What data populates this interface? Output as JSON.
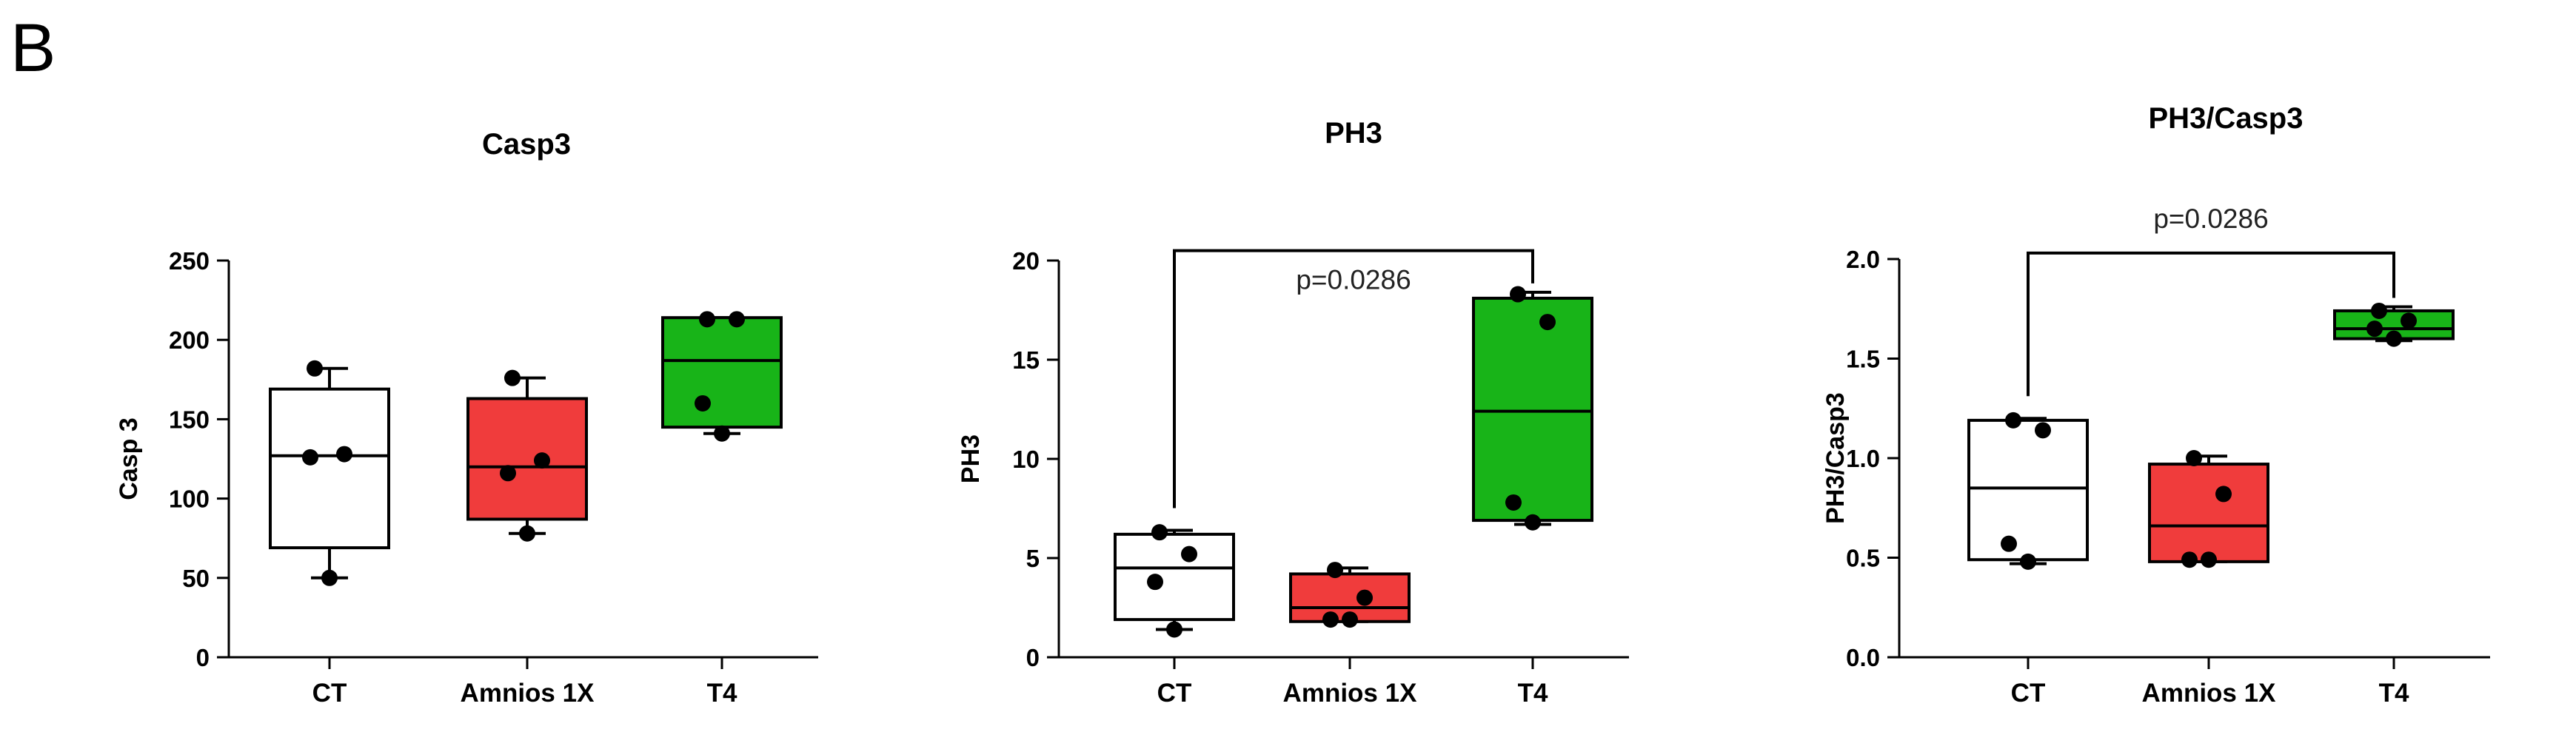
{
  "figure": {
    "panel_letter": "B"
  },
  "colors": {
    "axis": "#000000",
    "box_outline": "#000000",
    "point": "#000000"
  },
  "chart_data": [
    {
      "type": "box",
      "title": "Casp3",
      "ylabel": "Casp 3",
      "xlabel": "",
      "ylim": [
        0,
        250
      ],
      "yticks": [
        0,
        50,
        100,
        150,
        200,
        250
      ],
      "ytick_labels": [
        "0",
        "50",
        "100",
        "150",
        "200",
        "250"
      ],
      "categories": [
        "CT",
        "Amnios 1X",
        "T4"
      ],
      "fills": [
        "#ffffff",
        "#f03c3c",
        "#18b418"
      ],
      "boxes": [
        {
          "min": 50,
          "q1": 69,
          "median": 127,
          "q3": 169,
          "max": 182,
          "points": [
            182,
            128,
            126,
            50
          ]
        },
        {
          "min": 78,
          "q1": 87,
          "median": 120,
          "q3": 163,
          "max": 176,
          "points": [
            176,
            124,
            116,
            78
          ]
        },
        {
          "min": 141,
          "q1": 145,
          "median": 187,
          "q3": 214,
          "max": 214,
          "points": [
            213,
            213,
            160,
            141
          ]
        }
      ],
      "annotations": []
    },
    {
      "type": "box",
      "title": "PH3",
      "ylabel": "PH3",
      "xlabel": "",
      "ylim": [
        0,
        20
      ],
      "yticks": [
        0,
        5,
        10,
        15,
        20
      ],
      "ytick_labels": [
        "0",
        "5",
        "10",
        "15",
        "20"
      ],
      "categories": [
        "CT",
        "Amnios 1X",
        "T4"
      ],
      "fills": [
        "#ffffff",
        "#f03c3c",
        "#18b418"
      ],
      "boxes": [
        {
          "min": 1.4,
          "q1": 1.9,
          "median": 4.5,
          "q3": 6.2,
          "max": 6.4,
          "points": [
            6.3,
            5.2,
            3.8,
            1.4
          ]
        },
        {
          "min": 1.8,
          "q1": 1.8,
          "median": 2.5,
          "q3": 4.2,
          "max": 4.5,
          "points": [
            4.4,
            3.0,
            1.9,
            1.9
          ]
        },
        {
          "min": 6.7,
          "q1": 6.9,
          "median": 12.4,
          "q3": 18.1,
          "max": 18.4,
          "points": [
            18.3,
            16.9,
            7.8,
            6.8
          ]
        }
      ],
      "annotations": [
        {
          "from": 0,
          "to": 2,
          "y": 20.5,
          "label": "p=0.0286"
        }
      ]
    },
    {
      "type": "box",
      "title": "PH3/Casp3",
      "ylabel": "PH3/Casp3",
      "xlabel": "",
      "ylim": [
        0,
        2.0
      ],
      "yticks": [
        0,
        0.5,
        1.0,
        1.5,
        2.0
      ],
      "ytick_labels": [
        "0.0",
        "0.5",
        "1.0",
        "1.5",
        "2.0"
      ],
      "categories": [
        "CT",
        "Amnios 1X",
        "T4"
      ],
      "fills": [
        "#ffffff",
        "#f03c3c",
        "#18b418"
      ],
      "boxes": [
        {
          "min": 0.47,
          "q1": 0.49,
          "median": 0.85,
          "q3": 1.19,
          "max": 1.2,
          "points": [
            1.19,
            1.14,
            0.57,
            0.48
          ]
        },
        {
          "min": 0.48,
          "q1": 0.48,
          "median": 0.66,
          "q3": 0.97,
          "max": 1.01,
          "points": [
            1.0,
            0.82,
            0.49,
            0.49
          ]
        },
        {
          "min": 1.59,
          "q1": 1.6,
          "median": 1.65,
          "q3": 1.74,
          "max": 1.76,
          "points": [
            1.74,
            1.69,
            1.65,
            1.6
          ]
        }
      ],
      "annotations": [
        {
          "from": 0,
          "to": 2,
          "y": 2.03,
          "label": "p=0.0286"
        }
      ]
    }
  ]
}
